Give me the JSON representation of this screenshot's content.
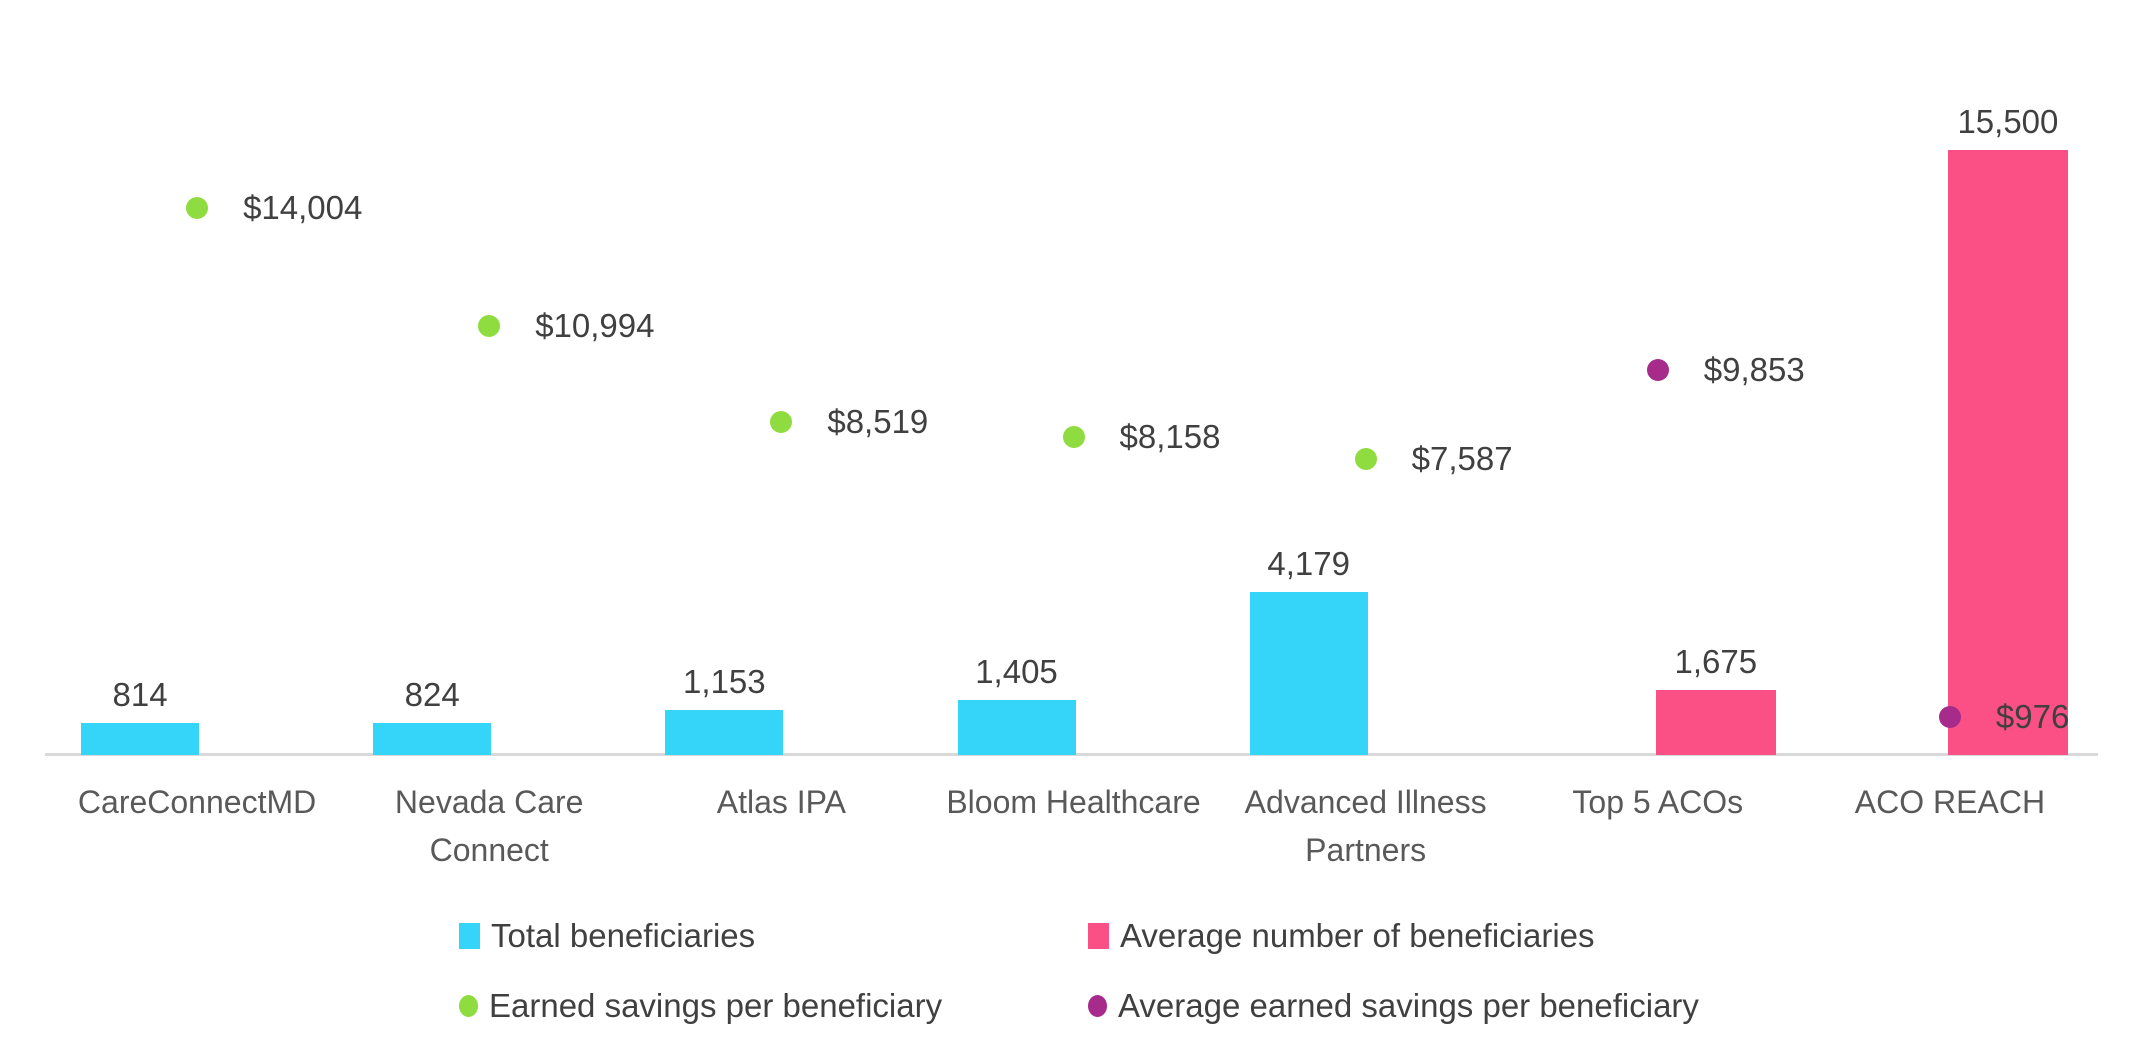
{
  "chart_data": {
    "type": "bar",
    "subtype": "combo clustered-bar + scatter markers, shared value axis, no gridlines",
    "title": "",
    "categories": [
      "CareConnectMD",
      "Nevada Care Connect",
      "Atlas IPA",
      "Bloom Healthcare",
      "Advanced Illness Partners",
      "Top 5 ACOs",
      "ACO REACH"
    ],
    "series": [
      {
        "name": "Total beneficiaries",
        "type": "bar",
        "color": "#34D5F8",
        "values": [
          814,
          824,
          1153,
          1405,
          4179,
          null,
          null
        ],
        "labels": [
          "814",
          "824",
          "1,153",
          "1,405",
          "4,179",
          null,
          null
        ]
      },
      {
        "name": "Average number of beneficiaries",
        "type": "bar",
        "color": "#FA5086",
        "values": [
          null,
          null,
          null,
          null,
          null,
          1675,
          15500
        ],
        "labels": [
          null,
          null,
          null,
          null,
          null,
          "1,675",
          "15,500"
        ]
      },
      {
        "name": "Earned savings per beneficiary",
        "type": "scatter",
        "color": "#8EDC3F",
        "values": [
          14004,
          10994,
          8519,
          8158,
          7587,
          null,
          null
        ],
        "labels": [
          "$14,004",
          "$10,994",
          "$8,519",
          "$8,158",
          "$7,587",
          null,
          null
        ]
      },
      {
        "name": "Average earned savings per beneficiary",
        "type": "scatter",
        "color": "#A62B8A",
        "values": [
          null,
          null,
          null,
          null,
          null,
          9853,
          976
        ],
        "labels": [
          null,
          null,
          null,
          null,
          null,
          "$9,853",
          "$976"
        ]
      }
    ],
    "ylim": [
      0,
      16000
    ],
    "grid": false,
    "legend_position": "bottom",
    "axis_line_color": "#D9D9D9",
    "value_label_color": "#404040",
    "category_label_color": "#595959"
  },
  "legend": {
    "rows": [
      {
        "items": [
          {
            "series": 0
          },
          {
            "series": 1
          }
        ]
      },
      {
        "items": [
          {
            "series": 2
          },
          {
            "series": 3
          }
        ]
      }
    ]
  }
}
